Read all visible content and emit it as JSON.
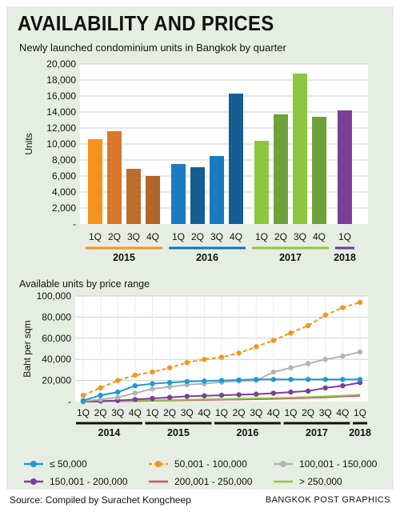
{
  "headline": "AVAILABILITY AND PRICES",
  "footer": {
    "source": "Source: Compiled by Surachet Kongcheep",
    "credit": "BANGKOK POST GRAPHICS"
  },
  "chart_data": [
    {
      "type": "bar",
      "title": "Newly launched condominium units in Bangkok by quarter",
      "ylabel": "Units",
      "ylim": [
        0,
        20000
      ],
      "yticks": [
        "-",
        "2,000",
        "4,000",
        "6,000",
        "8,000",
        "10,000",
        "12,000",
        "14,000",
        "16,000",
        "18,000",
        "20,000"
      ],
      "grid": true,
      "groups": [
        {
          "year": "2015",
          "color": "#f7941d",
          "bars": [
            {
              "label": "1Q",
              "value": 10600,
              "color": "#f7941d"
            },
            {
              "label": "2Q",
              "value": 11600,
              "color": "#d9762b"
            },
            {
              "label": "3Q",
              "value": 6900,
              "color": "#bd6b2a"
            },
            {
              "label": "4Q",
              "value": 6000,
              "color": "#b0652a"
            }
          ]
        },
        {
          "year": "2016",
          "color": "#0f75b8",
          "bars": [
            {
              "label": "1Q",
              "value": 7500,
              "color": "#1a7bbf"
            },
            {
              "label": "2Q",
              "value": 7100,
              "color": "#155e93"
            },
            {
              "label": "3Q",
              "value": 8500,
              "color": "#1a7bbf"
            },
            {
              "label": "4Q",
              "value": 16300,
              "color": "#155e93"
            }
          ]
        },
        {
          "year": "2017",
          "color": "#8dc63f",
          "bars": [
            {
              "label": "1Q",
              "value": 10400,
              "color": "#8dc63f"
            },
            {
              "label": "2Q",
              "value": 13700,
              "color": "#6fa13a"
            },
            {
              "label": "3Q",
              "value": 18800,
              "color": "#8dc63f"
            },
            {
              "label": "4Q",
              "value": 13400,
              "color": "#6fa13a"
            }
          ]
        },
        {
          "year": "2018",
          "color": "#6b3f98",
          "bars": [
            {
              "label": "1Q",
              "value": 14200,
              "color": "#7a3f98"
            }
          ]
        }
      ]
    },
    {
      "type": "line",
      "title": "Available units by price range",
      "ylabel": "Baht per sqm",
      "ylim": [
        0,
        100000
      ],
      "yticks": [
        "-",
        "20,000",
        "40,000",
        "60,000",
        "80,000",
        "100,000"
      ],
      "grid": true,
      "x": [
        "1Q",
        "2Q",
        "3Q",
        "4Q",
        "1Q",
        "2Q",
        "3Q",
        "4Q",
        "1Q",
        "2Q",
        "3Q",
        "4Q",
        "1Q",
        "2Q",
        "3Q",
        "4Q",
        "1Q"
      ],
      "years": [
        {
          "label": "2014",
          "start": 0,
          "end": 3
        },
        {
          "label": "2015",
          "start": 4,
          "end": 7
        },
        {
          "label": "2016",
          "start": 8,
          "end": 11
        },
        {
          "label": "2017",
          "start": 12,
          "end": 15
        },
        {
          "label": "2018",
          "start": 16,
          "end": 16
        }
      ],
      "legend_position": "bottom",
      "series": [
        {
          "name": "≤ 50,000",
          "color": "#1a9ad6",
          "marker": true,
          "dashed": false,
          "values": [
            1000,
            6000,
            9000,
            15000,
            17000,
            18000,
            19000,
            19500,
            20000,
            20500,
            21000,
            21000,
            21000,
            21000,
            21000,
            21000,
            21000
          ]
        },
        {
          "name": "50,001 - 100,000",
          "color": "#f7941d",
          "marker": true,
          "dashed": true,
          "values": [
            6000,
            13000,
            20000,
            25000,
            28000,
            32000,
            37000,
            40000,
            42000,
            46000,
            52000,
            58000,
            65000,
            72000,
            82000,
            89000,
            94000
          ]
        },
        {
          "name": "100,001 - 150,000",
          "color": "#b3b3b3",
          "marker": true,
          "dashed": false,
          "values": [
            500,
            2000,
            4000,
            8000,
            12000,
            14000,
            16000,
            17000,
            18500,
            19500,
            20000,
            28000,
            32000,
            36000,
            40000,
            43000,
            47000
          ]
        },
        {
          "name": "150,001 - 200,000",
          "color": "#7b3f98",
          "marker": true,
          "dashed": false,
          "values": [
            0,
            500,
            1000,
            2000,
            3000,
            4000,
            5000,
            5500,
            6000,
            6500,
            7000,
            8000,
            9000,
            10000,
            13000,
            15000,
            18000
          ]
        },
        {
          "name": "200,001 - 250,000",
          "color": "#e0457b",
          "marker": false,
          "dashed": false,
          "values": [
            0,
            200,
            400,
            600,
            800,
            1000,
            1200,
            1500,
            1800,
            2000,
            2300,
            2600,
            3000,
            3500,
            4000,
            4800,
            5500
          ]
        },
        {
          "name": "> 250,000",
          "color": "#8dc63f",
          "marker": false,
          "dashed": false,
          "values": [
            0,
            300,
            600,
            900,
            1200,
            1500,
            1800,
            2100,
            2400,
            2700,
            3000,
            3400,
            3800,
            4300,
            4900,
            5600,
            6500
          ]
        }
      ]
    }
  ]
}
